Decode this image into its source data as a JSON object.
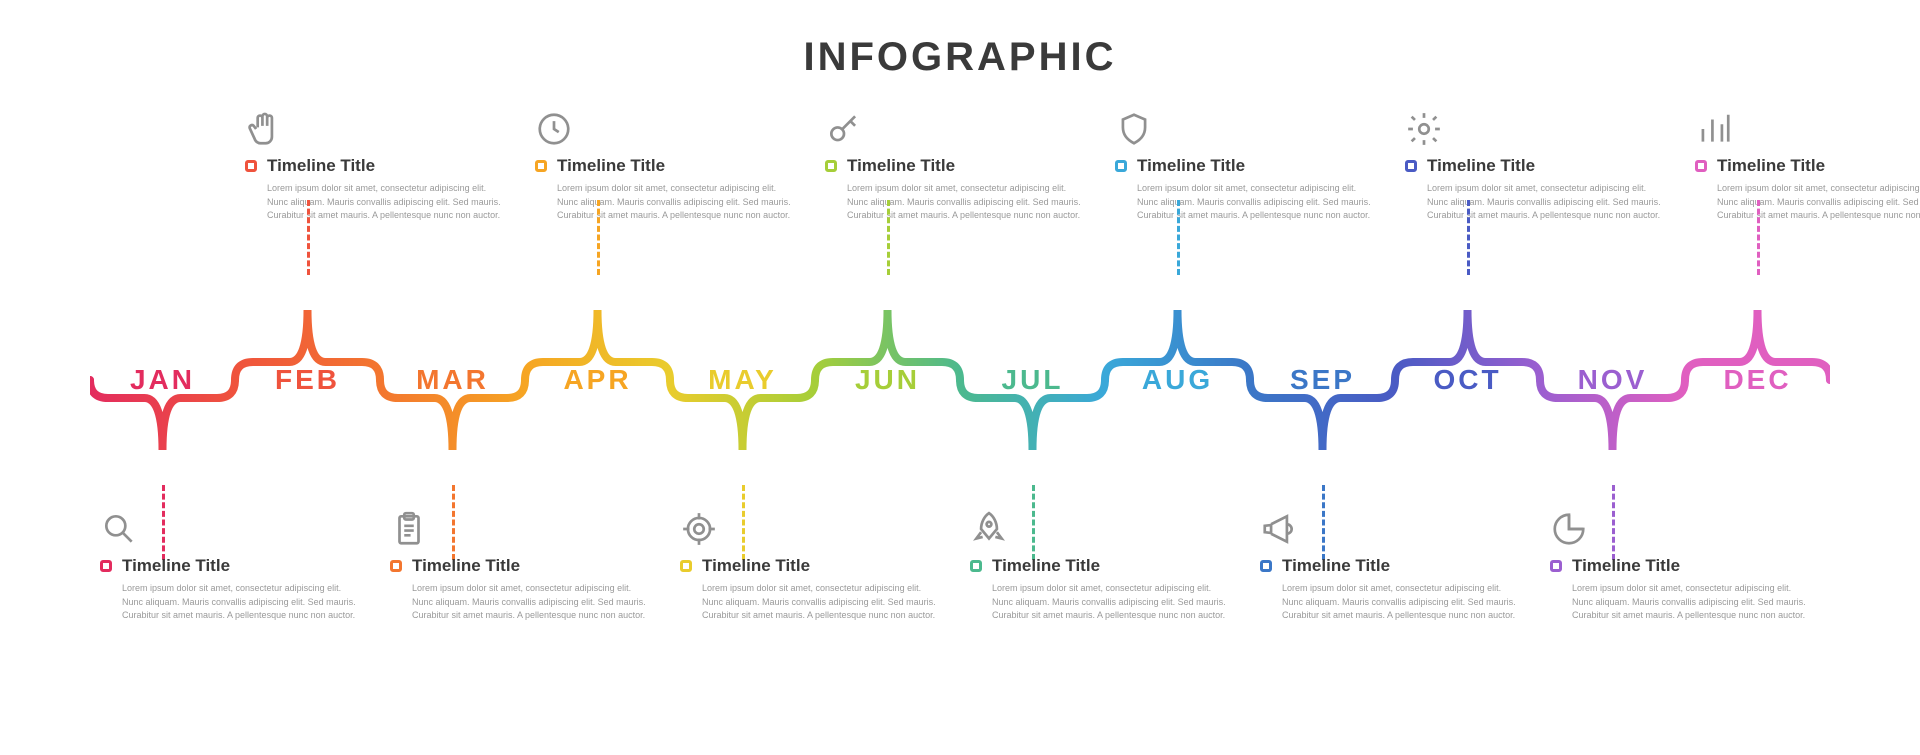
{
  "title": "INFOGRAPHIC",
  "background_color": "#ffffff",
  "title_color": "#3a3a3a",
  "title_fontsize": 40,
  "lorem": "Lorem ipsum dolor sit amet, consectetur adipiscing elit. Nunc aliquam. Mauris convallis adipiscing elit. Sed mauris. Curabitur sit amet mauris. A pellentesque nunc non auctor.",
  "block_title": "Timeline Title",
  "months": [
    {
      "label": "JAN",
      "color": "#e32c5e",
      "pos": "down"
    },
    {
      "label": "FEB",
      "color": "#ef533d",
      "pos": "up"
    },
    {
      "label": "MAR",
      "color": "#f3762f",
      "pos": "down"
    },
    {
      "label": "APR",
      "color": "#f6a523",
      "pos": "up"
    },
    {
      "label": "MAY",
      "color": "#e9cc2d",
      "pos": "down"
    },
    {
      "label": "JUN",
      "color": "#a6ce39",
      "pos": "up"
    },
    {
      "label": "JUL",
      "color": "#4cb98e",
      "pos": "down"
    },
    {
      "label": "AUG",
      "color": "#3aa8d9",
      "pos": "up"
    },
    {
      "label": "SEP",
      "color": "#3b77c7",
      "pos": "down"
    },
    {
      "label": "OCT",
      "color": "#4a5bc4",
      "pos": "up"
    },
    {
      "label": "NOV",
      "color": "#9b5fd0",
      "pos": "down"
    },
    {
      "label": "DEC",
      "color": "#e05fc0",
      "pos": "up"
    }
  ],
  "top_items": [
    {
      "month_idx": 1,
      "icon": "fist"
    },
    {
      "month_idx": 3,
      "icon": "clock"
    },
    {
      "month_idx": 5,
      "icon": "key"
    },
    {
      "month_idx": 7,
      "icon": "shield"
    },
    {
      "month_idx": 9,
      "icon": "gear"
    },
    {
      "month_idx": 11,
      "icon": "bars"
    }
  ],
  "bottom_items": [
    {
      "month_idx": 0,
      "icon": "search"
    },
    {
      "month_idx": 2,
      "icon": "clipboard"
    },
    {
      "month_idx": 4,
      "icon": "target"
    },
    {
      "month_idx": 6,
      "icon": "rocket"
    },
    {
      "month_idx": 8,
      "icon": "megaphone"
    },
    {
      "month_idx": 10,
      "icon": "pie"
    }
  ],
  "style": {
    "month_fontsize": 28,
    "block_title_fontsize": 17,
    "desc_fontsize": 9,
    "desc_color": "#9a9a9a",
    "icon_color": "#909090",
    "bracket_stroke_width": 8,
    "dash_pattern": "6 6"
  }
}
